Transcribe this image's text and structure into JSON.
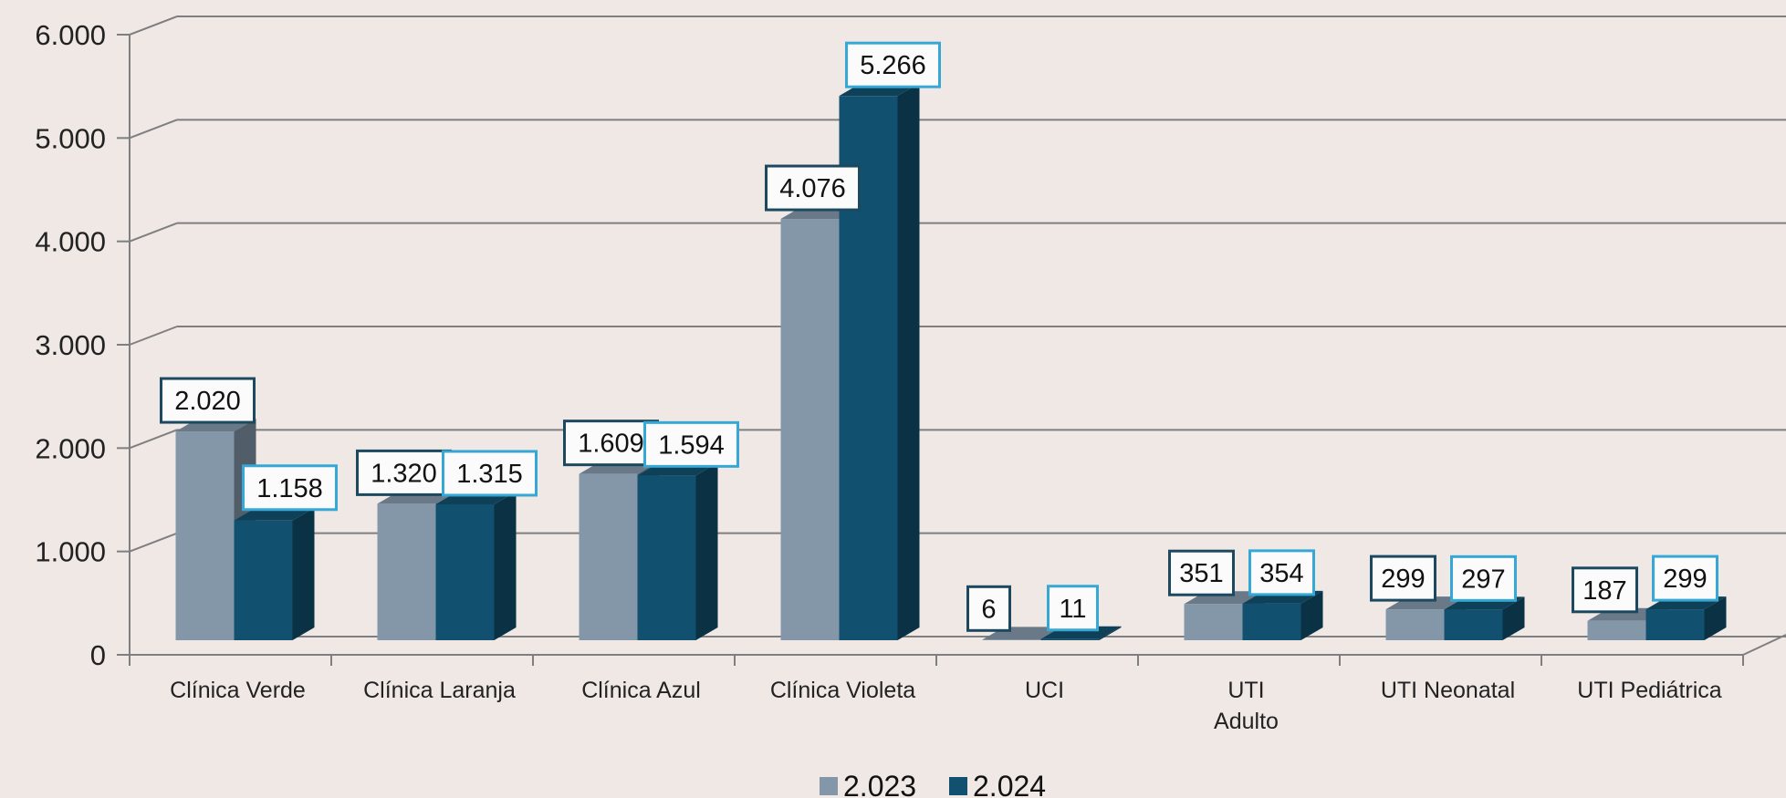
{
  "chart_data": {
    "type": "bar",
    "categories": [
      "Clínica Verde",
      "Clínica Laranja",
      "Clínica Azul",
      "Clínica Violeta",
      "UCI",
      [
        "UTI",
        "Adulto"
      ],
      "UTI Neonatal",
      "UTI Pediátrica"
    ],
    "series": [
      {
        "name": "2.023",
        "color": "#8397a9",
        "values": [
          2020,
          1320,
          1609,
          4076,
          6,
          351,
          299,
          187
        ],
        "labels": [
          "2.020",
          "1.320",
          "1.609",
          "4.076",
          "6",
          "351",
          "299",
          "187"
        ]
      },
      {
        "name": "2.024",
        "color": "#11506e",
        "values": [
          1158,
          1315,
          1594,
          5266,
          11,
          354,
          297,
          299
        ],
        "labels": [
          "1.158",
          "1.315",
          "1.594",
          "5.266",
          "11",
          "354",
          "297",
          "299"
        ]
      }
    ],
    "y_ticks": [
      "0",
      "1.000",
      "2.000",
      "3.000",
      "4.000",
      "5.000",
      "6.000"
    ],
    "ylim": [
      0,
      6000
    ],
    "grid": true,
    "legend_position": "bottom",
    "three_d": true,
    "label_border_colors": [
      "#1d4960",
      "#35a8d6"
    ]
  }
}
